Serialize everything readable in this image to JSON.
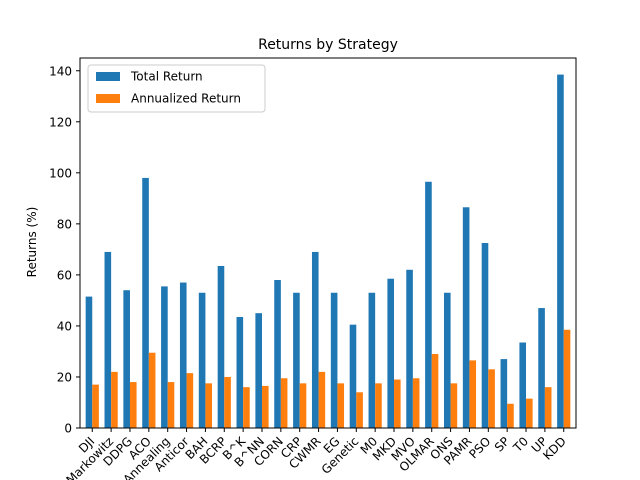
{
  "chart_data": {
    "type": "bar",
    "title": "Returns by Strategy",
    "xlabel": "",
    "ylabel": "Returns (%)",
    "ylim": [
      0,
      145
    ],
    "yticks": [
      0,
      20,
      40,
      60,
      80,
      100,
      120,
      140
    ],
    "legend_position": "top-left",
    "categories": [
      "DJI",
      "Markowitz",
      "DDPG",
      "ACO",
      "Annealing",
      "Anticor",
      "BAH",
      "BCRP",
      "B^K",
      "B^NN",
      "CORN",
      "CRP",
      "CWMR",
      "EG",
      "Genetic",
      "M0",
      "MKD",
      "MVO",
      "OLMAR",
      "ONS",
      "PAMR",
      "PSO",
      "SP",
      "T0",
      "UP",
      "KDD"
    ],
    "series": [
      {
        "name": "Total Return",
        "color": "#1f77b4",
        "values": [
          51.5,
          69,
          54,
          98,
          55.5,
          57,
          53,
          63.5,
          43.5,
          45,
          58,
          53,
          69,
          53,
          40.5,
          53,
          58.5,
          62,
          96.5,
          53,
          86.5,
          72.5,
          27,
          33.5,
          47,
          138.5
        ]
      },
      {
        "name": "Annualized Return",
        "color": "#ff7f0e",
        "values": [
          17,
          22,
          18,
          29.5,
          18,
          21.5,
          17.5,
          20,
          16,
          16.5,
          19.5,
          17.5,
          22,
          17.5,
          14,
          17.5,
          19,
          19.5,
          29,
          17.5,
          26.5,
          23,
          9.5,
          11.5,
          16,
          38.5
        ]
      }
    ]
  }
}
